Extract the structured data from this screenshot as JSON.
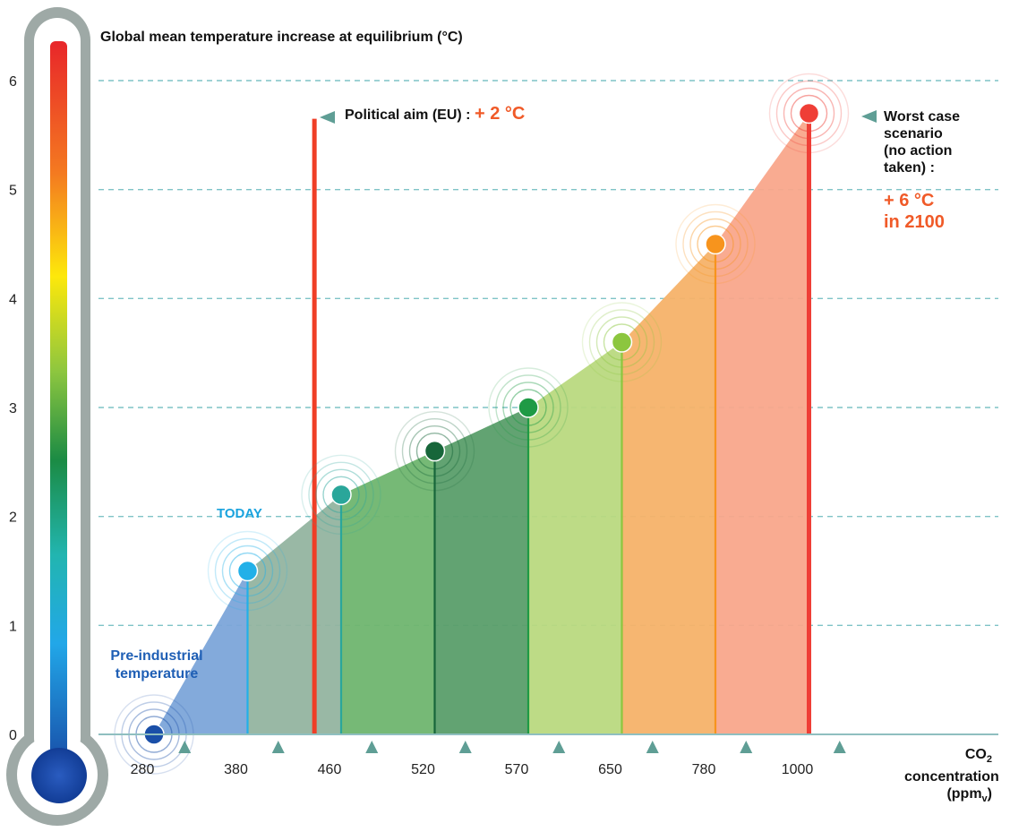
{
  "chart_data": {
    "type": "area",
    "title": "Global mean temperature increase at equilibrium (°C)",
    "xlabel": "CO₂ concentration (ppmᵥ)",
    "categories": [
      "280",
      "380",
      "460",
      "520",
      "570",
      "650",
      "780",
      "1000"
    ],
    "values": [
      0,
      1.5,
      2.2,
      2.6,
      3.0,
      3.6,
      4.5,
      5.7
    ],
    "ylim": [
      0,
      6
    ],
    "yticks": [
      0,
      1,
      2,
      3,
      4,
      5,
      6
    ],
    "grid": true,
    "point_colors": [
      "#1a4fa8",
      "#22b0e8",
      "#2aa69a",
      "#17663a",
      "#1f9a45",
      "#8cc63f",
      "#f7941d",
      "#ef3e36"
    ],
    "band_colors": [
      "#7ca5d9",
      "#93b4a0",
      "#6fb56f",
      "#5a9e6a",
      "#b9d97f",
      "#f6b269",
      "#f9a68b"
    ],
    "annotations": {
      "political_aim": {
        "label": "Political aim (EU) :",
        "value": "+ 2 °C",
        "color": "#f05a28"
      },
      "worst_case": {
        "label": "Worst case scenario (no action taken) :",
        "value": "+ 6 °C in 2100",
        "color": "#f05a28"
      },
      "today": {
        "label": "TODAY",
        "category": "380",
        "color": "#1aa3de"
      },
      "pre_industrial": {
        "label": "Pre-industrial temperature",
        "category": "280",
        "color": "#1f5fb5"
      }
    }
  },
  "labels": {
    "title": "Global mean temperature increase at equilibrium (°C)",
    "political": "Political aim (EU) :",
    "political_value": "+ 2 °C",
    "worst_l1": "Worst case",
    "worst_l2": "scenario",
    "worst_l3": "(no action",
    "worst_l4": "taken) :",
    "worst_v1": "+ 6 °C",
    "worst_v2": "in 2100",
    "today": "TODAY",
    "pre_l1": "Pre-industrial",
    "pre_l2": "temperature",
    "co2_l1": "CO",
    "co2_sub": "2",
    "co2_l2": "concentration",
    "co2_l3a": "(ppm",
    "co2_l3sub": "v",
    "co2_l3b": ")"
  }
}
